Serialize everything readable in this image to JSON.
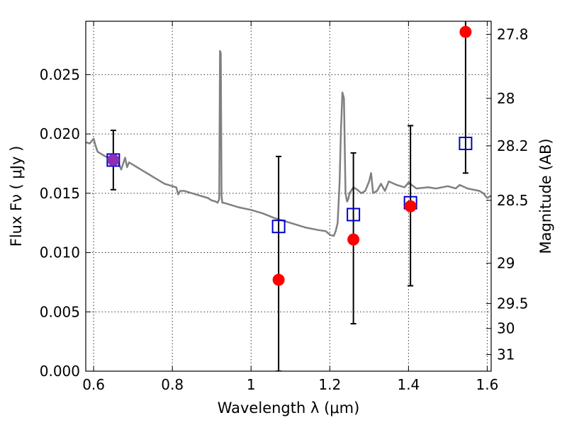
{
  "chart_data": {
    "type": "scatter",
    "xlabel": "Wavelength  λ (μm)",
    "ylabel": "Flux  Fν  ( μJy )",
    "y2label": "Magnitude (AB)",
    "xlim": [
      0.58,
      1.61
    ],
    "ylim": [
      0.0,
      0.0295
    ],
    "grid": true,
    "x_ticks": [
      {
        "value": 0.6,
        "label": "0.6"
      },
      {
        "value": 0.8,
        "label": "0.8"
      },
      {
        "value": 1.0,
        "label": "1"
      },
      {
        "value": 1.2,
        "label": "1.2"
      },
      {
        "value": 1.4,
        "label": "1.4"
      },
      {
        "value": 1.6,
        "label": "1.6"
      }
    ],
    "y_ticks": [
      {
        "value": 0.0,
        "label": "0.000"
      },
      {
        "value": 0.005,
        "label": "0.005"
      },
      {
        "value": 0.01,
        "label": "0.010"
      },
      {
        "value": 0.015,
        "label": "0.015"
      },
      {
        "value": 0.02,
        "label": "0.020"
      },
      {
        "value": 0.025,
        "label": "0.025"
      }
    ],
    "y2_ticks": [
      {
        "flux": 0.0284,
        "label": "27.8"
      },
      {
        "flux": 0.023,
        "label": "28"
      },
      {
        "flux": 0.019,
        "label": "28.2"
      },
      {
        "flux": 0.0144,
        "label": "28.5"
      },
      {
        "flux": 0.0091,
        "label": "29"
      },
      {
        "flux": 0.0057,
        "label": "29.5"
      },
      {
        "flux": 0.0036,
        "label": "30"
      },
      {
        "flux": 0.0014,
        "label": "31"
      }
    ],
    "series": [
      {
        "kind": "line",
        "color": "#808080",
        "x": [
          0.58,
          0.59,
          0.6,
          0.605,
          0.61,
          0.62,
          0.63,
          0.64,
          0.65,
          0.66,
          0.665,
          0.67,
          0.68,
          0.685,
          0.69,
          0.7,
          0.71,
          0.72,
          0.73,
          0.74,
          0.75,
          0.76,
          0.77,
          0.78,
          0.79,
          0.8,
          0.81,
          0.815,
          0.82,
          0.83,
          0.85,
          0.87,
          0.89,
          0.9,
          0.91,
          0.915,
          0.919,
          0.921,
          0.923,
          0.925,
          0.927,
          0.93,
          0.95,
          0.97,
          1.0,
          1.03,
          1.06,
          1.1,
          1.14,
          1.17,
          1.19,
          1.2,
          1.21,
          1.215,
          1.22,
          1.225,
          1.228,
          1.232,
          1.236,
          1.24,
          1.244,
          1.247,
          1.25,
          1.26,
          1.27,
          1.28,
          1.29,
          1.3,
          1.305,
          1.31,
          1.32,
          1.33,
          1.34,
          1.35,
          1.37,
          1.39,
          1.4,
          1.42,
          1.45,
          1.47,
          1.5,
          1.52,
          1.53,
          1.55,
          1.58,
          1.59,
          1.6,
          1.61
        ],
        "y": [
          0.0193,
          0.0192,
          0.0196,
          0.019,
          0.0185,
          0.0183,
          0.0181,
          0.018,
          0.018,
          0.0176,
          0.0174,
          0.017,
          0.018,
          0.0172,
          0.0176,
          0.0174,
          0.0172,
          0.017,
          0.0168,
          0.0166,
          0.0164,
          0.0162,
          0.016,
          0.0158,
          0.0157,
          0.0156,
          0.0155,
          0.0149,
          0.0152,
          0.0152,
          0.015,
          0.0148,
          0.0146,
          0.0144,
          0.0143,
          0.0142,
          0.0145,
          0.027,
          0.0268,
          0.0148,
          0.0142,
          0.0142,
          0.014,
          0.0138,
          0.0136,
          0.0133,
          0.0129,
          0.0125,
          0.0121,
          0.0119,
          0.0118,
          0.0115,
          0.0114,
          0.0118,
          0.0125,
          0.016,
          0.02,
          0.0235,
          0.023,
          0.015,
          0.0143,
          0.0145,
          0.015,
          0.0155,
          0.0153,
          0.015,
          0.0152,
          0.016,
          0.0167,
          0.015,
          0.0152,
          0.0158,
          0.0152,
          0.016,
          0.0157,
          0.0155,
          0.0159,
          0.0154,
          0.0155,
          0.0154,
          0.0156,
          0.0154,
          0.0157,
          0.0154,
          0.0152,
          0.015,
          0.0146,
          0.0148
        ]
      },
      {
        "kind": "errorbar",
        "color": "#000000",
        "x": [
          0.65,
          1.07,
          1.26,
          1.405,
          1.545
        ],
        "low": [
          0.0153,
          0.0,
          0.004,
          0.0072,
          0.0167
        ],
        "high": [
          0.0203,
          0.0181,
          0.0184,
          0.0207,
          0.03
        ]
      },
      {
        "kind": "open-square",
        "color": "#0000cc",
        "x": [
          0.65,
          1.07,
          1.26,
          1.405,
          1.545
        ],
        "y": [
          0.0178,
          0.0122,
          0.0132,
          0.0142,
          0.0192
        ]
      },
      {
        "kind": "filled-circle",
        "color": "#ff0000",
        "overlap_color": "#8b2fb5",
        "x": [
          0.65,
          1.07,
          1.26,
          1.405,
          1.545
        ],
        "y": [
          0.0178,
          0.0077,
          0.0111,
          0.0139,
          0.0286
        ]
      }
    ]
  }
}
